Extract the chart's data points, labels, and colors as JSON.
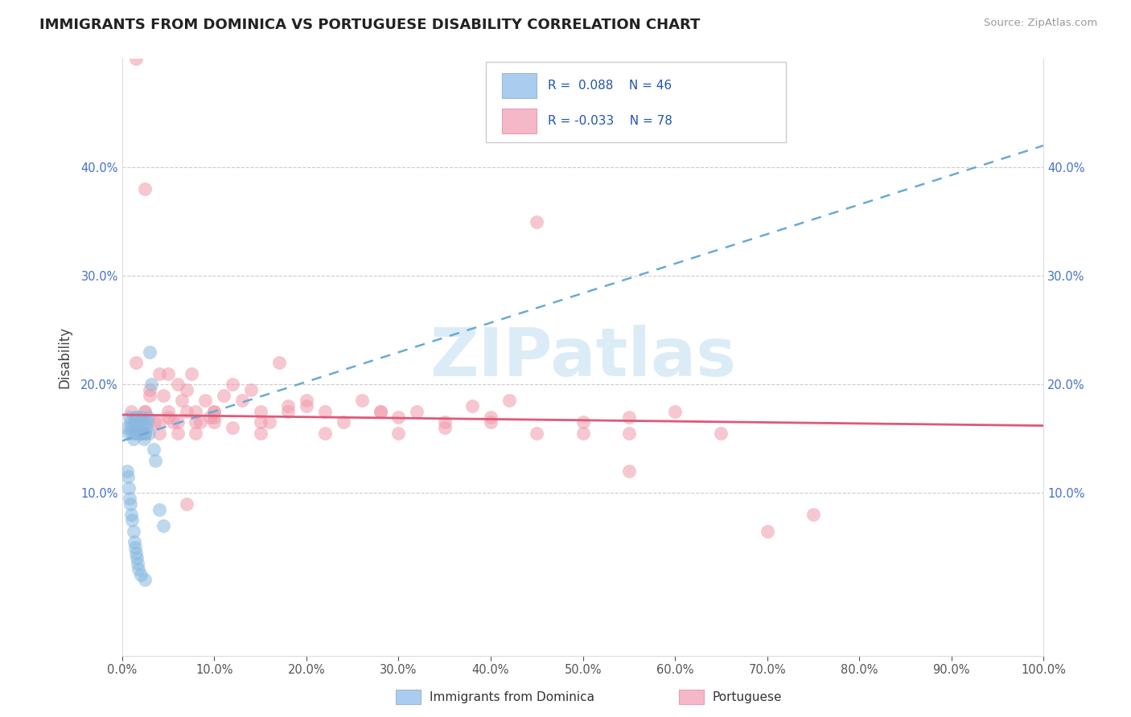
{
  "title": "IMMIGRANTS FROM DOMINICA VS PORTUGUESE DISABILITY CORRELATION CHART",
  "source": "Source: ZipAtlas.com",
  "ylabel": "Disability",
  "xlim": [
    0.0,
    1.0
  ],
  "ylim": [
    -0.05,
    0.5
  ],
  "yticks": [
    0.1,
    0.2,
    0.3,
    0.4
  ],
  "yticklabels": [
    "10.0%",
    "20.0%",
    "30.0%",
    "40.0%"
  ],
  "xticklabels": [
    "0.0%",
    "10.0%",
    "20.0%",
    "30.0%",
    "40.0%",
    "50.0%",
    "60.0%",
    "70.0%",
    "80.0%",
    "90.0%",
    "100.0%"
  ],
  "blue_scatter_color": "#89b8e0",
  "pink_scatter_color": "#f09aaa",
  "blue_line_color": "#6aaad4",
  "pink_line_color": "#e05878",
  "blue_legend_color": "#aaccee",
  "pink_legend_color": "#f4b8c8",
  "watermark_color": "#cce4f4",
  "blue_points_x": [
    0.005,
    0.007,
    0.008,
    0.009,
    0.01,
    0.011,
    0.012,
    0.013,
    0.014,
    0.015,
    0.016,
    0.017,
    0.018,
    0.019,
    0.02,
    0.021,
    0.022,
    0.023,
    0.024,
    0.025,
    0.026,
    0.027,
    0.028,
    0.029,
    0.03,
    0.032,
    0.034,
    0.036,
    0.04,
    0.045,
    0.005,
    0.006,
    0.007,
    0.008,
    0.009,
    0.01,
    0.011,
    0.012,
    0.013,
    0.014,
    0.015,
    0.016,
    0.017,
    0.018,
    0.02,
    0.025
  ],
  "blue_points_y": [
    0.16,
    0.155,
    0.17,
    0.165,
    0.16,
    0.155,
    0.15,
    0.165,
    0.17,
    0.155,
    0.16,
    0.17,
    0.165,
    0.155,
    0.16,
    0.17,
    0.155,
    0.165,
    0.15,
    0.155,
    0.16,
    0.165,
    0.17,
    0.155,
    0.23,
    0.2,
    0.14,
    0.13,
    0.085,
    0.07,
    0.12,
    0.115,
    0.105,
    0.095,
    0.09,
    0.08,
    0.075,
    0.065,
    0.055,
    0.05,
    0.045,
    0.04,
    0.035,
    0.03,
    0.025,
    0.02
  ],
  "pink_points_x": [
    0.01,
    0.015,
    0.02,
    0.025,
    0.03,
    0.035,
    0.04,
    0.045,
    0.05,
    0.055,
    0.06,
    0.065,
    0.07,
    0.075,
    0.08,
    0.085,
    0.09,
    0.095,
    0.1,
    0.11,
    0.12,
    0.13,
    0.14,
    0.15,
    0.16,
    0.17,
    0.18,
    0.2,
    0.22,
    0.24,
    0.26,
    0.28,
    0.3,
    0.32,
    0.35,
    0.38,
    0.4,
    0.42,
    0.45,
    0.5,
    0.55,
    0.6,
    0.025,
    0.03,
    0.04,
    0.05,
    0.06,
    0.07,
    0.08,
    0.1,
    0.12,
    0.15,
    0.18,
    0.22,
    0.28,
    0.35,
    0.45,
    0.55,
    0.65,
    0.75,
    0.025,
    0.015,
    0.07,
    0.05,
    0.1,
    0.3,
    0.5,
    0.4,
    0.2,
    0.15,
    0.1,
    0.08,
    0.06,
    0.04,
    0.025,
    0.015,
    0.55,
    0.7
  ],
  "pink_points_y": [
    0.175,
    0.22,
    0.155,
    0.175,
    0.195,
    0.165,
    0.155,
    0.19,
    0.21,
    0.165,
    0.2,
    0.185,
    0.195,
    0.21,
    0.175,
    0.165,
    0.185,
    0.17,
    0.175,
    0.19,
    0.2,
    0.185,
    0.195,
    0.175,
    0.165,
    0.22,
    0.18,
    0.185,
    0.175,
    0.165,
    0.185,
    0.175,
    0.17,
    0.175,
    0.165,
    0.18,
    0.17,
    0.185,
    0.155,
    0.165,
    0.155,
    0.175,
    0.155,
    0.19,
    0.21,
    0.17,
    0.165,
    0.175,
    0.155,
    0.175,
    0.16,
    0.165,
    0.175,
    0.155,
    0.175,
    0.16,
    0.35,
    0.17,
    0.155,
    0.08,
    0.38,
    0.5,
    0.09,
    0.175,
    0.165,
    0.155,
    0.155,
    0.165,
    0.18,
    0.155,
    0.17,
    0.165,
    0.155,
    0.165,
    0.175,
    0.155,
    0.12,
    0.065
  ],
  "blue_line_x0": 0.0,
  "blue_line_y0": 0.148,
  "blue_line_x1": 1.0,
  "blue_line_y1": 0.42,
  "pink_line_x0": 0.0,
  "pink_line_y0": 0.172,
  "pink_line_x1": 1.0,
  "pink_line_y1": 0.162
}
